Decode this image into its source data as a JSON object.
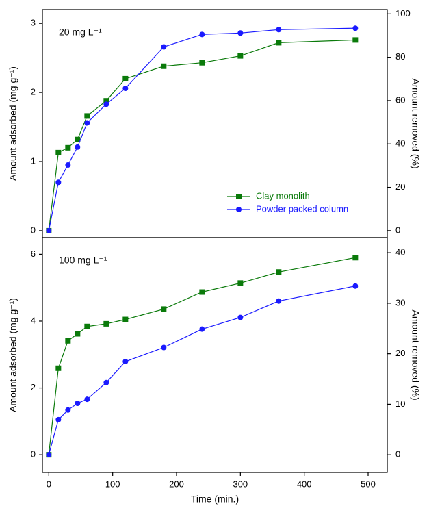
{
  "chart_data": [
    {
      "type": "line",
      "annotation": "20 mg L⁻¹",
      "ylabel": "Amount adsorbed (mg g⁻¹)",
      "y2label": "Amount removed (%)",
      "x": [
        0,
        15,
        30,
        45,
        60,
        90,
        120,
        180,
        240,
        300,
        360,
        480
      ],
      "series": [
        {
          "name": "Clay monolith",
          "color": "#0a7a0a",
          "marker": "square",
          "values": [
            0,
            1.13,
            1.2,
            1.32,
            1.66,
            1.88,
            2.2,
            2.38,
            2.43,
            2.53,
            2.72,
            2.76
          ]
        },
        {
          "name": "Powder packed column",
          "color": "#1a1aff",
          "marker": "circle",
          "values": [
            0,
            0.7,
            0.95,
            1.21,
            1.56,
            1.83,
            2.06,
            2.66,
            2.84,
            2.86,
            2.91,
            2.93
          ]
        }
      ],
      "legend": "lower right",
      "xlim": [
        -10,
        530
      ],
      "ylim": [
        -0.1,
        3.2
      ],
      "yticks": [
        0,
        1,
        2,
        3
      ],
      "y2lim": [
        -3.2,
        102
      ],
      "y2ticks": [
        0,
        20,
        40,
        60,
        80,
        100
      ]
    },
    {
      "type": "line",
      "annotation": "100 mg L⁻¹",
      "ylabel": "Amount adsorbed (mg g⁻¹)",
      "y2label": "Amount removed (%)",
      "xlabel": "Time (min.)",
      "x": [
        0,
        15,
        30,
        45,
        60,
        90,
        120,
        180,
        240,
        300,
        360,
        480
      ],
      "series": [
        {
          "color": "#0a7a0a",
          "marker": "square",
          "values": [
            0,
            2.59,
            3.41,
            3.62,
            3.84,
            3.92,
            4.05,
            4.36,
            4.87,
            5.14,
            5.47,
            5.9
          ]
        },
        {
          "color": "#1a1aff",
          "marker": "circle",
          "values": [
            0,
            1.05,
            1.34,
            1.54,
            1.66,
            2.16,
            2.79,
            3.21,
            3.76,
            4.11,
            4.6,
            5.05
          ]
        }
      ],
      "xlim": [
        -10,
        530
      ],
      "xticks": [
        0,
        100,
        200,
        300,
        400,
        500
      ],
      "ylim": [
        -0.53,
        6.5
      ],
      "yticks": [
        0,
        2,
        4,
        6
      ],
      "y2lim": [
        -3.5,
        43
      ],
      "y2ticks": [
        0,
        10,
        20,
        30,
        40
      ]
    }
  ]
}
